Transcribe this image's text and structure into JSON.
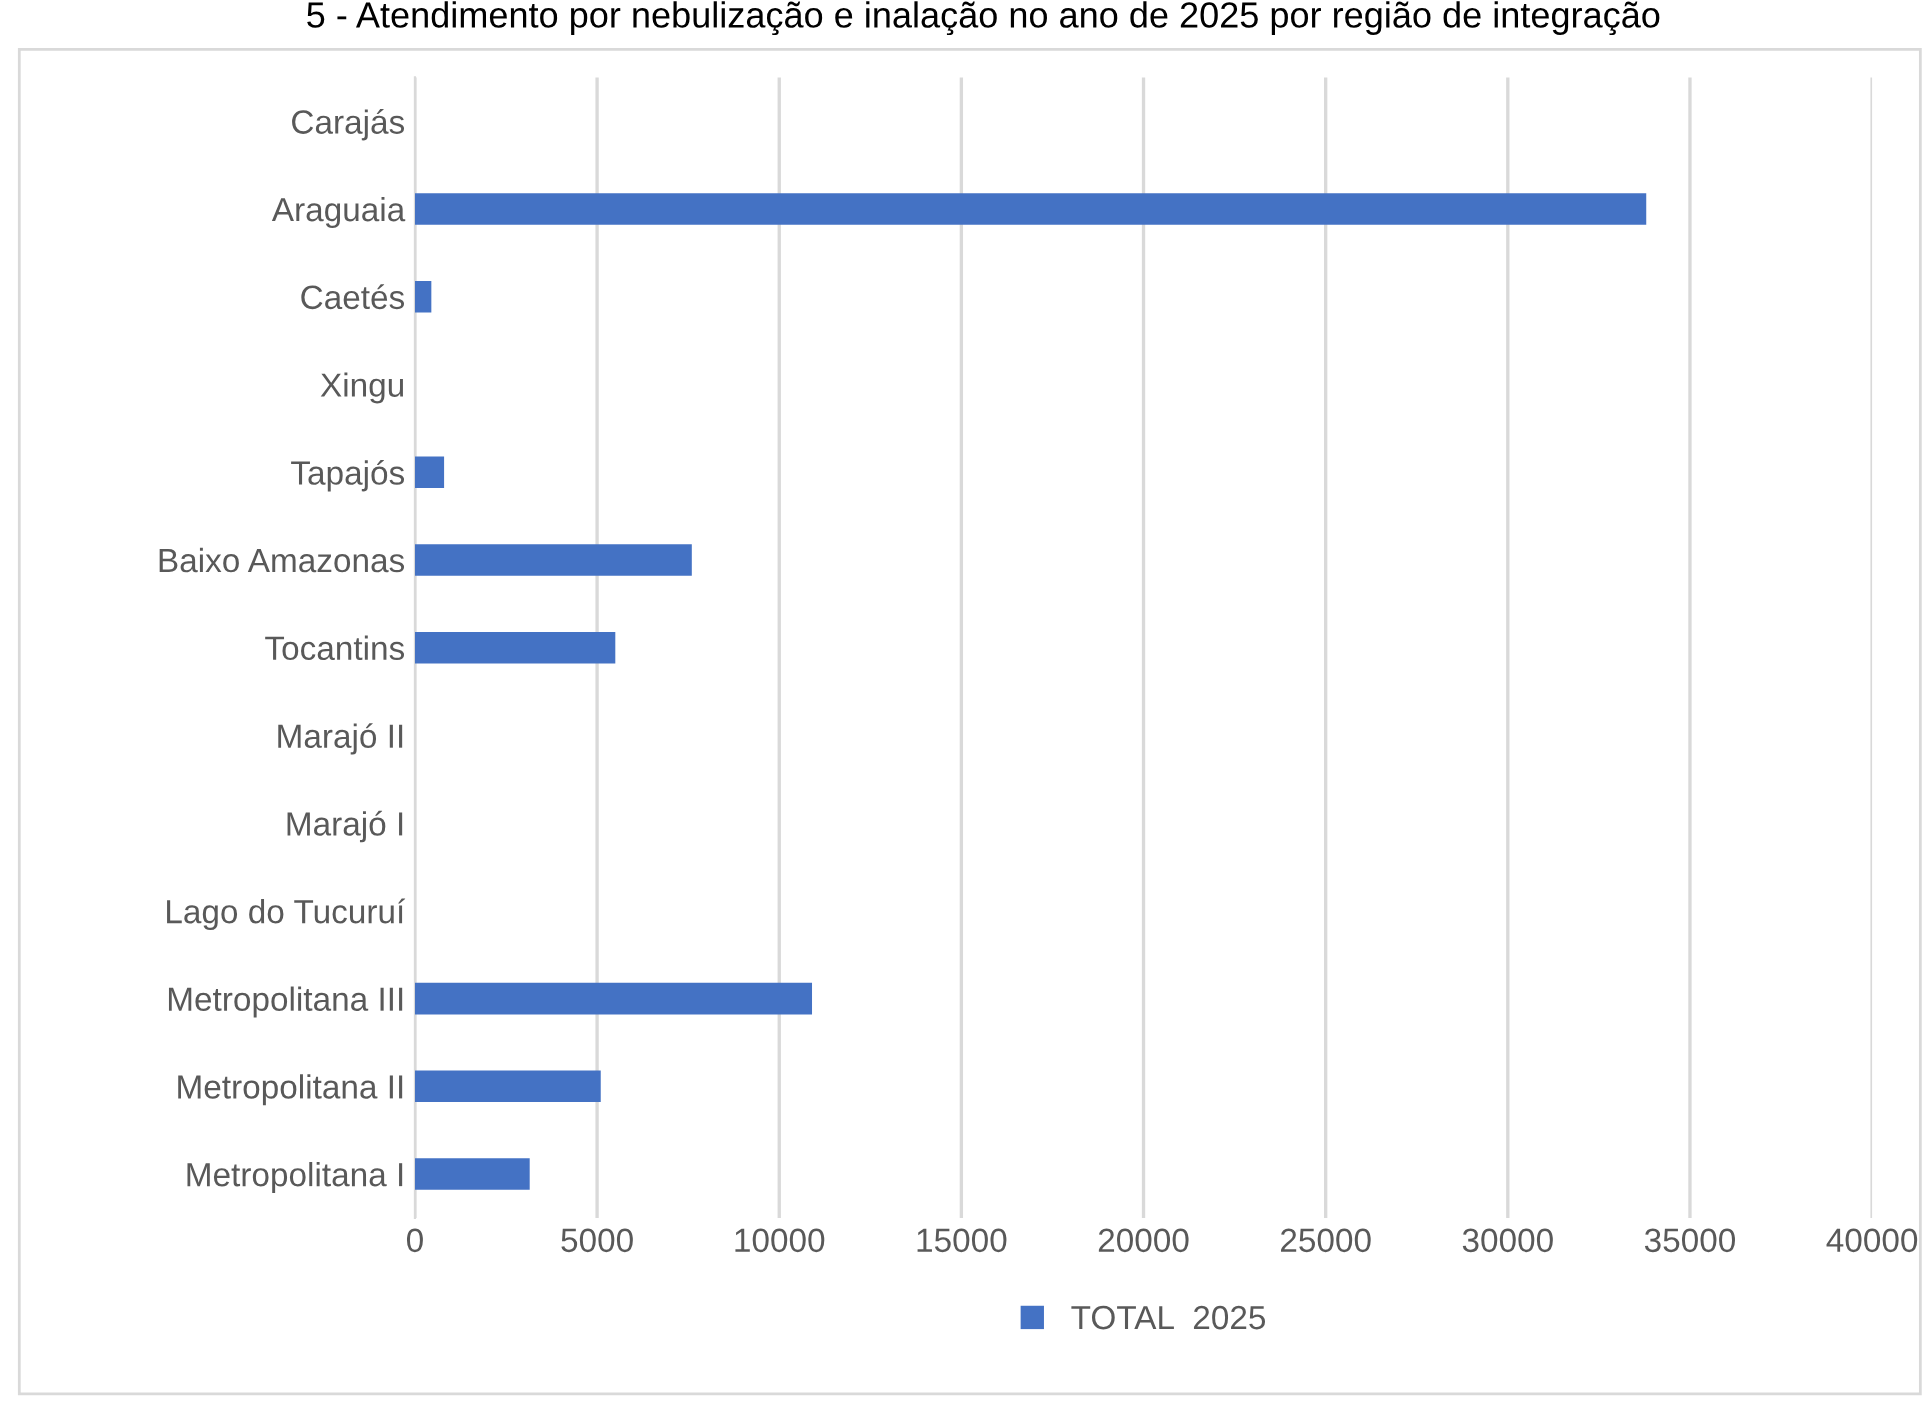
{
  "chart_data": {
    "type": "bar",
    "orientation": "horizontal",
    "title": "5 - Atendimento por nebulização e inalação no ano de 2025 por região de integração",
    "categories": [
      "Carajás",
      "Araguaia",
      "Caetés",
      "Xingu",
      "Tapajós",
      "Baixo Amazonas",
      "Tocantins",
      "Marajó II",
      "Marajó I",
      "Lago do Tucuruí",
      "Metropolitana III",
      "Metropolitana II",
      "Metropolitana I"
    ],
    "series": [
      {
        "name": "TOTAL  2025",
        "color": "#4472c4",
        "values": [
          0,
          33800,
          450,
          0,
          800,
          7600,
          5500,
          0,
          0,
          0,
          10900,
          5100,
          3150
        ]
      }
    ],
    "xlim": [
      0,
      40000
    ],
    "xticks": [
      0,
      5000,
      10000,
      15000,
      20000,
      25000,
      30000,
      35000,
      40000
    ],
    "grid": "x",
    "legend": "bottom"
  }
}
